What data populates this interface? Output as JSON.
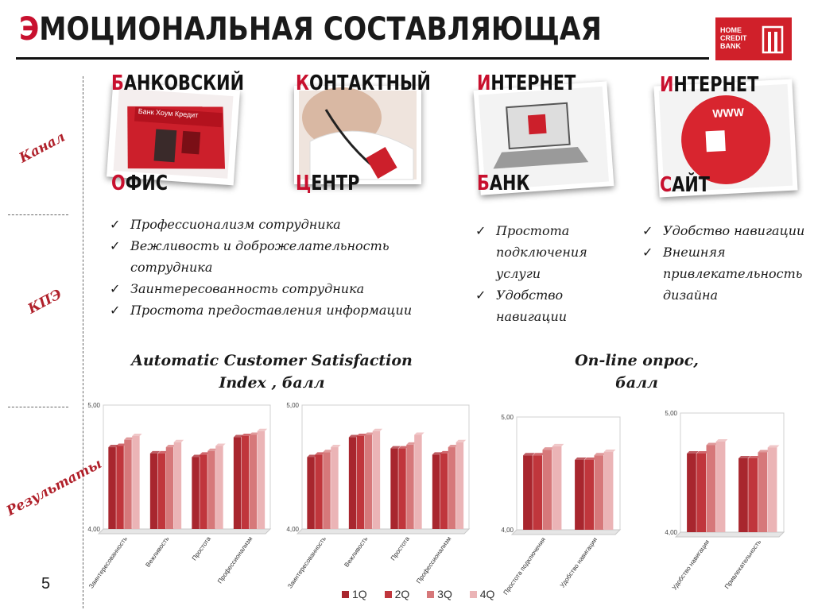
{
  "title": {
    "first": "Э",
    "rest": "моциональная составляющая"
  },
  "logo": {
    "text": "HOME CREDIT BANK"
  },
  "side_labels": {
    "channel": "Канал",
    "kpi": "КПЭ",
    "results": "Результаты"
  },
  "channels": [
    {
      "top_first": "Б",
      "top_rest": "анковский",
      "bottom_first": "О",
      "bottom_rest": "фис",
      "sign": "Банк Хоум Кредит"
    },
    {
      "top_first": "К",
      "top_rest": "онтактный",
      "bottom_first": "Ц",
      "bottom_rest": "ентр"
    },
    {
      "top_first": "И",
      "top_rest": "нтернет",
      "bottom_first": "Б",
      "bottom_rest": "анк"
    },
    {
      "top_first": "И",
      "top_rest": "нтернет",
      "bottom_first": "С",
      "bottom_rest": "айт",
      "www": "WWW"
    }
  ],
  "kpi_lists": [
    [
      "Профессионализм сотрудника",
      "Вежливость и доброжелательность сотрудника",
      "Заинтересованность сотрудника",
      "Простота предоставления информации"
    ],
    [
      "Простота подключения услуги",
      "Удобство навигации"
    ],
    [
      "Удобство навигации",
      "Внешняя привлекательность дизайна"
    ]
  ],
  "chart_titles": {
    "acsi": "Automatic Customer Satisfaction Index , балл",
    "online": "On-line опрос, балл"
  },
  "legend": [
    "1Q",
    "2Q",
    "3Q",
    "4Q"
  ],
  "colors": {
    "accent": "#c8102e",
    "series": [
      "#a8262e",
      "#c0363c",
      "#d6787a",
      "#ebb4b6"
    ]
  },
  "page_number": "5",
  "chart_data": [
    {
      "type": "bar",
      "ylim": [
        4.0,
        5.0
      ],
      "yticks": [
        "4,00",
        "5,00"
      ],
      "categories": [
        "Заинтересованность",
        "Вежливость",
        "Простота",
        "Профессионализм"
      ],
      "series": [
        {
          "name": "1Q",
          "values": [
            4.66,
            4.61,
            4.58,
            4.74
          ]
        },
        {
          "name": "2Q",
          "values": [
            4.67,
            4.61,
            4.6,
            4.75
          ]
        },
        {
          "name": "3Q",
          "values": [
            4.72,
            4.66,
            4.63,
            4.76
          ]
        },
        {
          "name": "4Q",
          "values": [
            4.75,
            4.7,
            4.67,
            4.79
          ]
        }
      ]
    },
    {
      "type": "bar",
      "ylim": [
        4.0,
        5.0
      ],
      "yticks": [
        "4,00",
        "5,00"
      ],
      "categories": [
        "Заинтересованность",
        "Вежливость",
        "Простота",
        "Профессионализм"
      ],
      "series": [
        {
          "name": "1Q",
          "values": [
            4.58,
            4.74,
            4.65,
            4.6
          ]
        },
        {
          "name": "2Q",
          "values": [
            4.6,
            4.75,
            4.65,
            4.61
          ]
        },
        {
          "name": "3Q",
          "values": [
            4.62,
            4.76,
            4.68,
            4.66
          ]
        },
        {
          "name": "4Q",
          "values": [
            4.66,
            4.79,
            4.76,
            4.7
          ]
        }
      ]
    },
    {
      "type": "bar",
      "ylim": [
        4.0,
        5.0
      ],
      "yticks": [
        "4,00",
        "5,00"
      ],
      "categories": [
        "Простота подключения",
        "Удобство навигации"
      ],
      "series": [
        {
          "name": "1Q",
          "values": [
            4.66,
            4.62
          ]
        },
        {
          "name": "2Q",
          "values": [
            4.66,
            4.62
          ]
        },
        {
          "name": "3Q",
          "values": [
            4.71,
            4.66
          ]
        },
        {
          "name": "4Q",
          "values": [
            4.74,
            4.69
          ]
        }
      ]
    },
    {
      "type": "bar",
      "ylim": [
        4.0,
        5.0
      ],
      "yticks": [
        "4,00",
        "5,00"
      ],
      "categories": [
        "Удобство навигации",
        "Привлекательность"
      ],
      "series": [
        {
          "name": "1Q",
          "values": [
            4.66,
            4.62
          ]
        },
        {
          "name": "2Q",
          "values": [
            4.66,
            4.62
          ]
        },
        {
          "name": "3Q",
          "values": [
            4.73,
            4.67
          ]
        },
        {
          "name": "4Q",
          "values": [
            4.76,
            4.71
          ]
        }
      ]
    }
  ]
}
